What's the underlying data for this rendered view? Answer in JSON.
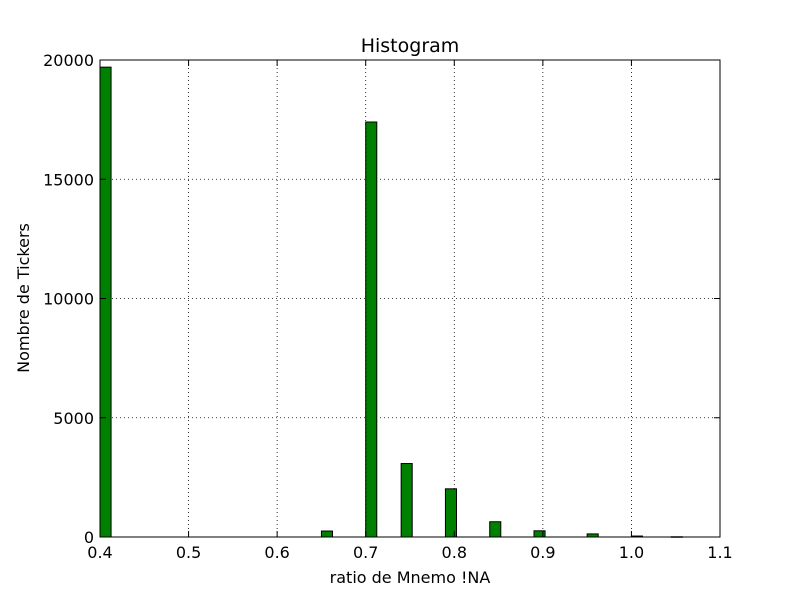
{
  "chart_data": {
    "type": "bar",
    "title": "Histogram",
    "xlabel": "ratio de Mnemo !NA",
    "ylabel": "Nombre de Tickers",
    "xlim": [
      0.4,
      1.1
    ],
    "ylim": [
      0,
      20000
    ],
    "xticks": [
      "0.4",
      "0.5",
      "0.6",
      "0.7",
      "0.8",
      "0.9",
      "1.0",
      "1.1"
    ],
    "yticks": [
      "0",
      "5000",
      "10000",
      "15000",
      "20000"
    ],
    "grid": true,
    "bar_color": "#008000",
    "bar_edge_color": "#000000",
    "bin_width": 0.0125,
    "bins": [
      {
        "x": 0.4,
        "value": 19700
      },
      {
        "x": 0.65,
        "value": 250
      },
      {
        "x": 0.7,
        "value": 17400
      },
      {
        "x": 0.74,
        "value": 3080
      },
      {
        "x": 0.79,
        "value": 2020
      },
      {
        "x": 0.84,
        "value": 640
      },
      {
        "x": 0.89,
        "value": 260
      },
      {
        "x": 0.95,
        "value": 130
      },
      {
        "x": 1.0,
        "value": 40
      },
      {
        "x": 1.045,
        "value": 10
      }
    ]
  }
}
